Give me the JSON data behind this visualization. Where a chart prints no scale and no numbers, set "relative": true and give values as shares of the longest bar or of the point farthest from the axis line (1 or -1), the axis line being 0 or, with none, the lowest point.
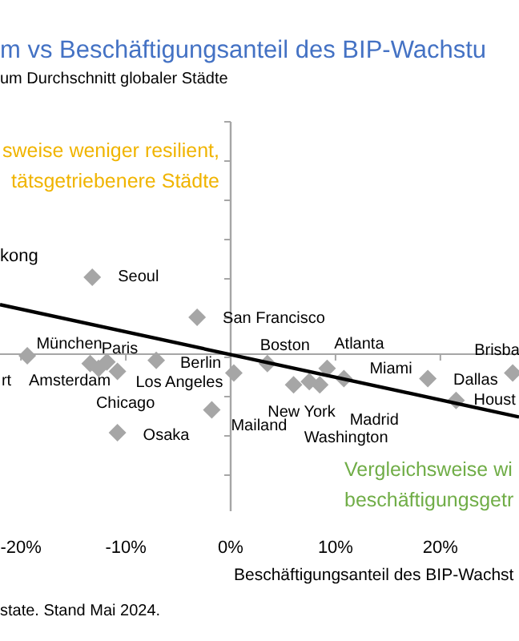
{
  "chart_data": {
    "type": "scatter",
    "title": "m vs Beschäftigungsanteil des BIP-Wachstu",
    "subtitle": "um Durchschnitt globaler Städte",
    "xlabel": "Beschäftigungsanteil des BIP-Wachst",
    "relative": true,
    "xlim": [
      -22,
      27.5
    ],
    "xticks": [
      {
        "value": -20,
        "label": "-20%"
      },
      {
        "value": -10,
        "label": "-10%"
      },
      {
        "value": 0,
        "label": "0%"
      },
      {
        "value": 10,
        "label": "10%"
      },
      {
        "value": 20,
        "label": "20%"
      }
    ],
    "tick_labels": "x",
    "series": [
      {
        "marker": "diamond",
        "color": "#a6a6a6",
        "x": [
          -19.4,
          -13.2,
          -3.2,
          -13.4,
          -11.8,
          -12.6,
          -10.8,
          -7.1,
          0.3,
          -10.8,
          -1.8,
          3.5,
          9.2,
          10.8,
          6.0,
          8.5,
          7.5,
          18.8,
          21.5,
          26.9
        ],
        "values": [
          -0.02,
          0.98,
          0.47,
          -0.12,
          -0.1,
          -0.18,
          -0.22,
          -0.08,
          -0.24,
          -1,
          -0.71,
          -0.12,
          -0.18,
          -0.31,
          -0.39,
          -0.39,
          -0.35,
          -0.31,
          -0.59,
          -0.24
        ]
      },
      {
        "type": "line",
        "color": "#000000",
        "x": [
          -22,
          27.5
        ],
        "values": [
          0.63,
          -0.8
        ]
      }
    ],
    "annotations": [
      "sweise weniger resilient,\ntätsgetriebenere Städte",
      "Vergleichsweise wi\nbeschäftigungsgetr",
      "state. Stand Mai 2024.",
      "kong",
      {
        "text": "rt",
        "x": -19.4,
        "y": -0.02
      },
      {
        "text": "Seoul",
        "x": -13.2,
        "y": 0.98
      },
      {
        "text": "San Francisco",
        "x": -3.2,
        "y": 0.47
      },
      {
        "text": "München",
        "x": -13.4,
        "y": -0.12
      },
      {
        "text": "Paris",
        "x": -11.8,
        "y": -0.1
      },
      {
        "text": "Amsterdam",
        "x": -12.6,
        "y": -0.18
      },
      {
        "text": "Chicago",
        "x": -10.8,
        "y": -0.22
      },
      {
        "text": "Berlin",
        "x": -7.1,
        "y": -0.08
      },
      {
        "text": "Los Angeles",
        "x": 0.3,
        "y": -0.24
      },
      {
        "text": "Osaka",
        "x": -10.8,
        "y": -1
      },
      {
        "text": "Mailand",
        "x": -1.8,
        "y": -0.71
      },
      {
        "text": "Boston",
        "x": 3.5,
        "y": -0.12
      },
      {
        "text": "Atlanta",
        "x": 9.2,
        "y": -0.18
      },
      {
        "text": "Miami",
        "x": 10.8,
        "y": -0.31
      },
      {
        "text": "New York",
        "x": 6.0,
        "y": -0.39
      },
      {
        "text": "Madrid",
        "x": 8.5,
        "y": -0.39
      },
      {
        "text": "Washington",
        "x": 7.5,
        "y": -0.35
      },
      {
        "text": "Dallas",
        "x": 18.8,
        "y": -0.31
      },
      {
        "text": "Houst",
        "x": 21.5,
        "y": -0.59
      },
      {
        "text": "Brisba",
        "x": 26.9,
        "y": -0.24
      }
    ]
  }
}
